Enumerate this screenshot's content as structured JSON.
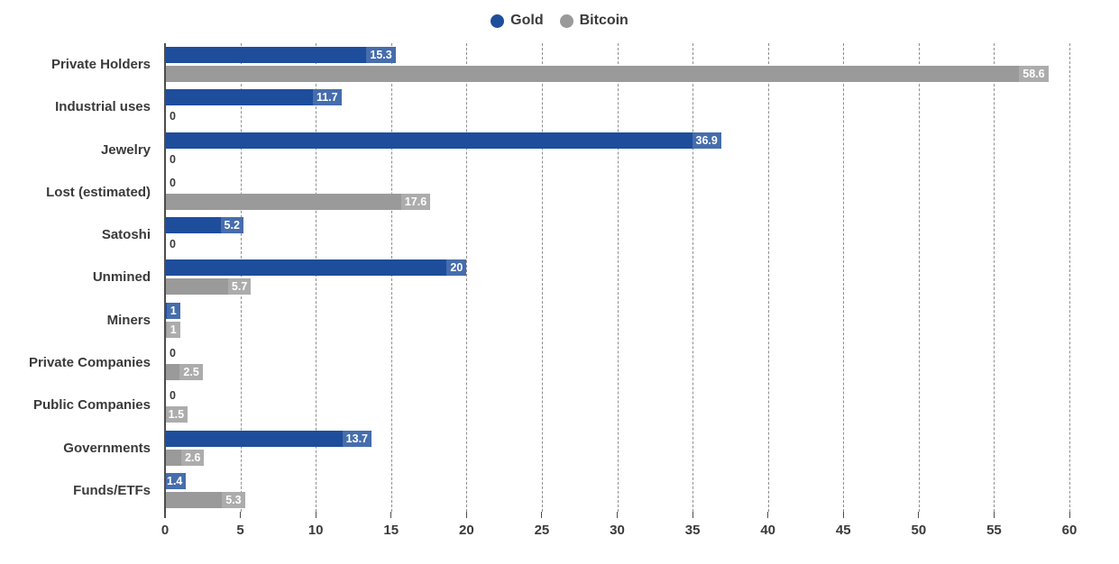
{
  "legend": {
    "items": [
      {
        "label": "Gold",
        "color": "#1e4d9b"
      },
      {
        "label": "Bitcoin",
        "color": "#9a9a9a"
      }
    ]
  },
  "chart_data": {
    "type": "bar",
    "orientation": "horizontal",
    "title": "",
    "xlabel": "",
    "ylabel": "",
    "categories": [
      "Private Holders",
      "Industrial uses",
      "Jewelry",
      "Lost (estimated)",
      "Satoshi",
      "Unmined",
      "Miners",
      "Private Companies",
      "Public Companies",
      "Governments",
      "Funds/ETFs"
    ],
    "series": [
      {
        "name": "Gold",
        "color": "#1e4d9b",
        "values": [
          15.3,
          11.7,
          36.9,
          0,
          5.2,
          20,
          1,
          0,
          0,
          13.7,
          1.4
        ]
      },
      {
        "name": "Bitcoin",
        "color": "#9a9a9a",
        "values": [
          58.6,
          0,
          0,
          17.6,
          0,
          5.7,
          1,
          2.5,
          1.5,
          2.6,
          5.3
        ]
      }
    ],
    "xlim": [
      0,
      60
    ],
    "x_ticks": [
      0,
      5,
      10,
      15,
      20,
      25,
      30,
      35,
      40,
      45,
      50,
      55,
      60
    ],
    "grid": "dashed-vertical",
    "legend_position": "top-center",
    "value_labels": "inside-end-white, zeros outside dark"
  },
  "colors": {
    "background": "#ffffff",
    "text": "#3a3a3a",
    "axis": "#4d4d4d",
    "gridline": "#8f8f8f",
    "value_label_text": "#ffffff"
  }
}
